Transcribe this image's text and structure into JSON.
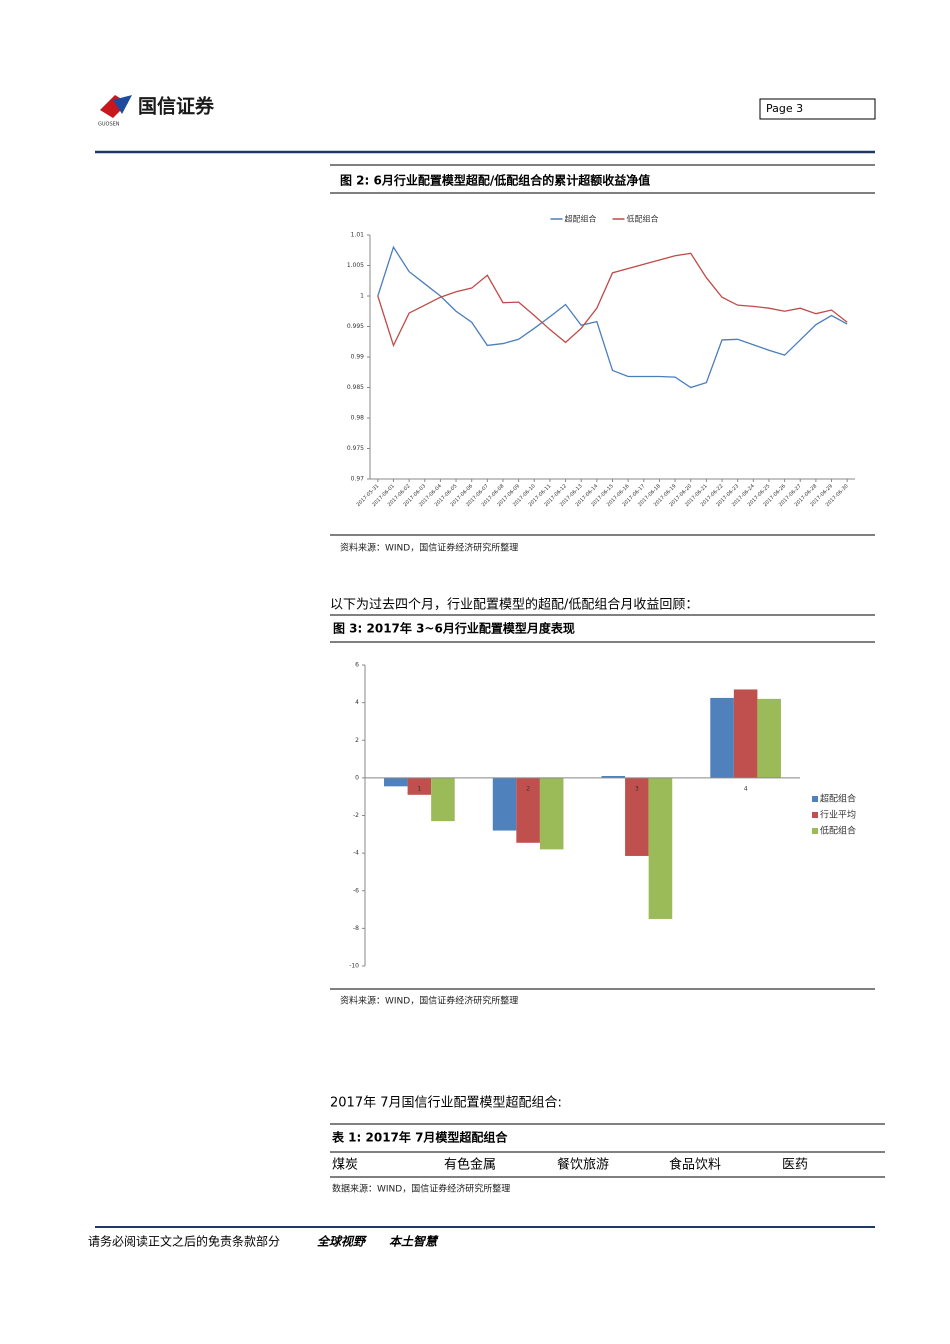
{
  "header": {
    "logo": "国信证券",
    "logo_sub": "GUOSEN",
    "page": "Page 3"
  },
  "chart_data": [
    {
      "type": "line",
      "title": "图 2:  6月行业配置模型超配/低配组合的累计超额收益净值",
      "source": "资料来源：WIND，国信证券经济研究所整理",
      "x": [
        "2017-05-31",
        "2017-06-01",
        "2017-06-02",
        "2017-06-03",
        "2017-06-04",
        "2017-06-05",
        "2017-06-06",
        "2017-06-07",
        "2017-06-08",
        "2017-06-09",
        "2017-06-10",
        "2017-06-11",
        "2017-06-12",
        "2017-06-13",
        "2017-06-14",
        "2017-06-15",
        "2017-06-16",
        "2017-06-17",
        "2017-06-18",
        "2017-06-19",
        "2017-06-20",
        "2017-06-21",
        "2017-06-22",
        "2017-06-23",
        "2017-06-24",
        "2017-06-25",
        "2017-06-26",
        "2017-06-27",
        "2017-06-28",
        "2017-06-29",
        "2017-06-30"
      ],
      "series": [
        {
          "name": "超配组合",
          "color": "#4a7ebb",
          "values": [
            1.0,
            1.008,
            1.004,
            1.002,
            1.0,
            0.9975,
            0.9957,
            0.9919,
            0.9922,
            0.9929,
            0.9947,
            0.9966,
            0.9986,
            0.9952,
            0.9958,
            0.9878,
            0.9868,
            0.9868,
            0.9868,
            0.9867,
            0.985,
            0.9858,
            0.9928,
            0.9929,
            0.992,
            0.9911,
            0.9903,
            0.9928,
            0.9953,
            0.9968,
            0.9954
          ]
        },
        {
          "name": "低配组合",
          "color": "#be4b48",
          "values": [
            1.0,
            0.9919,
            0.9972,
            0.9985,
            0.9998,
            1.0007,
            1.0013,
            1.0034,
            0.9989,
            0.999,
            0.9968,
            0.9945,
            0.9924,
            0.9947,
            0.998,
            1.0038,
            1.0045,
            1.0052,
            1.0059,
            1.0066,
            1.007,
            1.003,
            0.9998,
            0.9985,
            0.9983,
            0.998,
            0.9975,
            0.998,
            0.9971,
            0.9977,
            0.9957
          ]
        }
      ],
      "ylim": [
        0.97,
        1.01
      ],
      "yticks": [
        0.97,
        0.975,
        0.98,
        0.985,
        0.99,
        0.995,
        1,
        1.005,
        1.01
      ],
      "grid": false,
      "legend": "top"
    },
    {
      "type": "bar",
      "title": "图 3:  2017年 3~6月行业配置模型月度表现",
      "source": "资料来源：WIND，国信证券经济研究所整理",
      "categories": [
        "1",
        "2",
        "3",
        "4"
      ],
      "series": [
        {
          "name": "超配组合",
          "color": "#4f81bd",
          "values": [
            -0.45,
            -2.8,
            0.1,
            4.25
          ]
        },
        {
          "name": "行业平均",
          "color": "#c0504d",
          "values": [
            -0.9,
            -3.45,
            -4.15,
            4.7
          ]
        },
        {
          "name": "低配组合",
          "color": "#9bbb59",
          "values": [
            -2.3,
            -3.8,
            -7.5,
            4.2
          ]
        }
      ],
      "ylim": [
        -10,
        6
      ],
      "yticks": [
        -10,
        -8,
        -6,
        -4,
        -2,
        0,
        2,
        4,
        6
      ],
      "grid": false,
      "legend": "right"
    }
  ],
  "paragraphs": [
    "以下为过去四个月，行业配置模型的超配/低配组合月收益回顾：",
    "2017年 7月国信行业配置模型超配组合:"
  ],
  "table": {
    "title": "表 1:  2017年 7月模型超配组合",
    "rows": [
      [
        "煤炭",
        "有色金属",
        "餐饮旅游",
        "食品饮料",
        "医药"
      ]
    ],
    "source": "数据来源：WIND，国信证券经济研究所整理"
  },
  "footer": {
    "disclaimer": "请务必阅读正文之后的免责条款部分",
    "slogan": [
      "全球视野",
      "本土智慧"
    ]
  }
}
